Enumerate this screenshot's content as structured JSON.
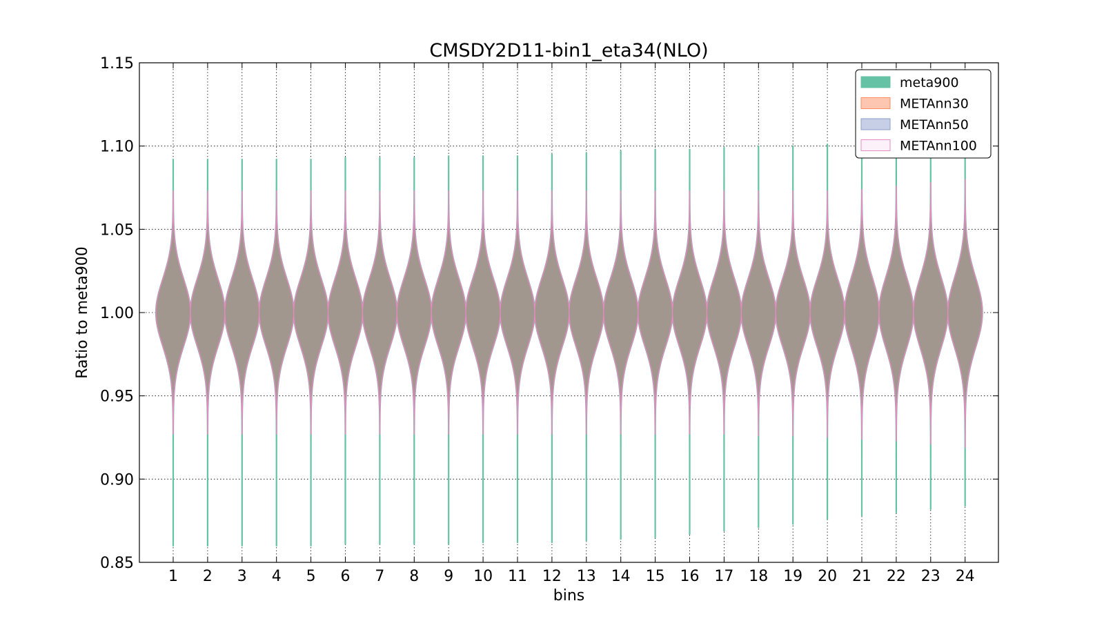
{
  "chart_data": {
    "type": "violin",
    "title": "CMSDY2D11-bin1_eta34(NLO)",
    "xlabel": "bins",
    "ylabel": "Ratio to meta900",
    "ylim": [
      0.85,
      1.15
    ],
    "yticks": [
      "0.85",
      "0.90",
      "0.95",
      "1.00",
      "1.05",
      "1.10",
      "1.15"
    ],
    "categories": [
      "1",
      "2",
      "3",
      "4",
      "5",
      "6",
      "7",
      "8",
      "9",
      "10",
      "11",
      "12",
      "13",
      "14",
      "15",
      "16",
      "17",
      "18",
      "19",
      "20",
      "21",
      "22",
      "23",
      "24"
    ],
    "grid": true,
    "legend_position": "top-right",
    "series": [
      {
        "name": "meta900",
        "color": "#66c2a5",
        "min": [
          0.86,
          0.86,
          0.86,
          0.86,
          0.86,
          0.861,
          0.861,
          0.861,
          0.861,
          0.862,
          0.862,
          0.862,
          0.863,
          0.864,
          0.865,
          0.867,
          0.869,
          0.871,
          0.873,
          0.876,
          0.878,
          0.88,
          0.882,
          0.884
        ],
        "max": [
          1.092,
          1.092,
          1.092,
          1.092,
          1.092,
          1.093,
          1.093,
          1.093,
          1.094,
          1.094,
          1.094,
          1.095,
          1.096,
          1.097,
          1.098,
          1.098,
          1.099,
          1.1,
          1.1,
          1.101,
          1.101,
          1.102,
          1.103,
          1.104
        ],
        "center": [
          1.0,
          1.0,
          1.0,
          1.0,
          1.0,
          1.0,
          1.0,
          1.0,
          1.0,
          1.0,
          1.0,
          1.0,
          1.0,
          1.0,
          1.0,
          1.0,
          1.0,
          1.0,
          1.0,
          1.0,
          1.0,
          1.0,
          1.0,
          1.0
        ],
        "spread": [
          0.02,
          0.02,
          0.02,
          0.02,
          0.02,
          0.02,
          0.02,
          0.02,
          0.02,
          0.02,
          0.02,
          0.02,
          0.02,
          0.02,
          0.02,
          0.02,
          0.02,
          0.02,
          0.02,
          0.02,
          0.021,
          0.021,
          0.021,
          0.021
        ]
      },
      {
        "name": "METAnn30",
        "color": "#fc8d62",
        "min": [
          0.927,
          0.927,
          0.927,
          0.927,
          0.927,
          0.927,
          0.927,
          0.927,
          0.927,
          0.927,
          0.927,
          0.927,
          0.927,
          0.927,
          0.927,
          0.927,
          0.927,
          0.926,
          0.926,
          0.925,
          0.924,
          0.923,
          0.921,
          0.919
        ],
        "max": [
          1.073,
          1.073,
          1.073,
          1.073,
          1.073,
          1.073,
          1.073,
          1.073,
          1.073,
          1.073,
          1.073,
          1.073,
          1.073,
          1.073,
          1.073,
          1.073,
          1.073,
          1.073,
          1.073,
          1.073,
          1.074,
          1.076,
          1.078,
          1.08
        ],
        "center": [
          1.0,
          1.0,
          1.0,
          1.0,
          1.0,
          1.0,
          1.0,
          1.0,
          1.0,
          1.0,
          1.0,
          1.0,
          1.0,
          1.0,
          1.0,
          1.0,
          1.0,
          1.0,
          1.0,
          1.0,
          1.0,
          1.0,
          1.0,
          1.0
        ],
        "spread": [
          0.02,
          0.02,
          0.02,
          0.02,
          0.02,
          0.02,
          0.02,
          0.02,
          0.02,
          0.02,
          0.02,
          0.02,
          0.02,
          0.02,
          0.02,
          0.02,
          0.02,
          0.02,
          0.02,
          0.02,
          0.021,
          0.021,
          0.021,
          0.021
        ]
      },
      {
        "name": "METAnn50",
        "color": "#8da0cb",
        "min": [
          0.927,
          0.927,
          0.927,
          0.927,
          0.927,
          0.927,
          0.927,
          0.927,
          0.927,
          0.927,
          0.927,
          0.927,
          0.927,
          0.927,
          0.927,
          0.927,
          0.927,
          0.926,
          0.926,
          0.925,
          0.924,
          0.923,
          0.921,
          0.919
        ],
        "max": [
          1.073,
          1.073,
          1.073,
          1.073,
          1.073,
          1.073,
          1.073,
          1.073,
          1.073,
          1.073,
          1.073,
          1.073,
          1.073,
          1.073,
          1.073,
          1.073,
          1.073,
          1.073,
          1.073,
          1.073,
          1.074,
          1.076,
          1.078,
          1.08
        ],
        "center": [
          1.0,
          1.0,
          1.0,
          1.0,
          1.0,
          1.0,
          1.0,
          1.0,
          1.0,
          1.0,
          1.0,
          1.0,
          1.0,
          1.0,
          1.0,
          1.0,
          1.0,
          1.0,
          1.0,
          1.0,
          1.0,
          1.0,
          1.0,
          1.0
        ],
        "spread": [
          0.02,
          0.02,
          0.02,
          0.02,
          0.02,
          0.02,
          0.02,
          0.02,
          0.02,
          0.02,
          0.02,
          0.02,
          0.02,
          0.02,
          0.02,
          0.02,
          0.02,
          0.02,
          0.02,
          0.02,
          0.021,
          0.021,
          0.021,
          0.021
        ]
      },
      {
        "name": "METAnn100",
        "color": "#e78ac3",
        "min": [
          0.927,
          0.927,
          0.927,
          0.927,
          0.927,
          0.927,
          0.927,
          0.927,
          0.927,
          0.927,
          0.927,
          0.927,
          0.927,
          0.927,
          0.927,
          0.927,
          0.927,
          0.926,
          0.926,
          0.925,
          0.924,
          0.923,
          0.921,
          0.919
        ],
        "max": [
          1.073,
          1.073,
          1.073,
          1.073,
          1.073,
          1.073,
          1.073,
          1.073,
          1.073,
          1.073,
          1.073,
          1.073,
          1.073,
          1.073,
          1.073,
          1.073,
          1.073,
          1.073,
          1.073,
          1.073,
          1.074,
          1.076,
          1.078,
          1.08
        ],
        "center": [
          1.0,
          1.0,
          1.0,
          1.0,
          1.0,
          1.0,
          1.0,
          1.0,
          1.0,
          1.0,
          1.0,
          1.0,
          1.0,
          1.0,
          1.0,
          1.0,
          1.0,
          1.0,
          1.0,
          1.0,
          1.0,
          1.0,
          1.0,
          1.0
        ],
        "spread": [
          0.02,
          0.02,
          0.02,
          0.02,
          0.02,
          0.02,
          0.02,
          0.02,
          0.02,
          0.02,
          0.02,
          0.02,
          0.02,
          0.02,
          0.02,
          0.02,
          0.02,
          0.02,
          0.02,
          0.02,
          0.021,
          0.021,
          0.021,
          0.021
        ]
      }
    ]
  }
}
